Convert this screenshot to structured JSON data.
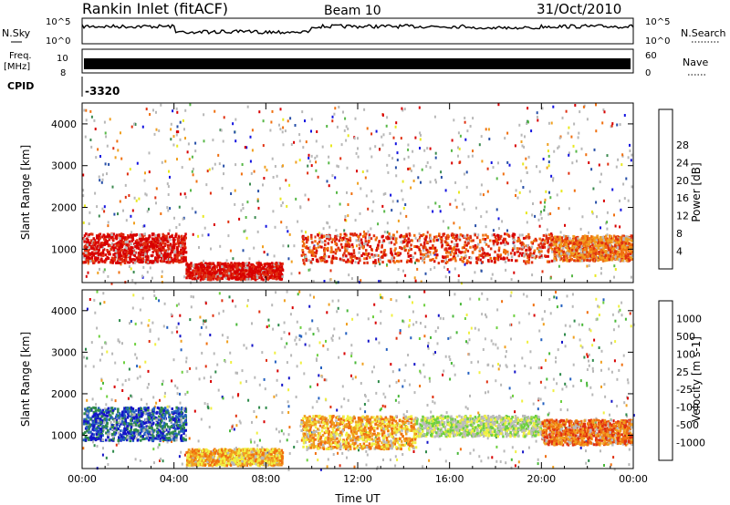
{
  "header": {
    "station": "Rankin Inlet (fitACF)",
    "beam": "Beam 10",
    "date": "31/Oct/2010"
  },
  "colors": {
    "power_scale": [
      "#1414e0",
      "#2850a8",
      "#3c8a50",
      "#58b848",
      "#e8e820",
      "#f0a020",
      "#f07010",
      "#e03010",
      "#d80000"
    ],
    "velocity_scale": [
      "#1414c8",
      "#2460c0",
      "#2e8a4a",
      "#4ab83a",
      "#6ed040",
      "#bcbcbc",
      "#f0f040",
      "#f0a020",
      "#f07010",
      "#e03010",
      "#d80000"
    ],
    "ground_scatter": "#b8b8b8"
  },
  "top_panels": {
    "nsky": {
      "label": "N.Sky",
      "tick_hi": "10^5",
      "tick_lo": "10^0"
    },
    "nsearch": {
      "label": "N.Search",
      "tick_hi": "10^5",
      "tick_lo": "10^0"
    },
    "freq": {
      "label": "Freq.",
      "unit": "[MHz]",
      "tick_hi": "10",
      "tick_lo": "8"
    },
    "nave": {
      "label": "Nave",
      "tick_hi": "60",
      "tick_lo": "0"
    },
    "cpid": {
      "label": "CPID",
      "value": "-3320"
    }
  },
  "chart_data": [
    {
      "type": "heatmap",
      "name": "power",
      "ylabel": "Slant Range [km]",
      "ylim": [
        200,
        4500
      ],
      "yticks": [
        "1000",
        "2000",
        "3000",
        "4000"
      ],
      "x_ticks": [
        "00:00",
        "04:00",
        "08:00",
        "12:00",
        "16:00",
        "20:00",
        "00:00"
      ],
      "colorbar": {
        "label": "Power [dB]",
        "ticks": [
          "4",
          "8",
          "12",
          "16",
          "20",
          "24",
          "28"
        ]
      },
      "regions": [
        {
          "hours": [
            0.0,
            4.5
          ],
          "range_km": [
            700,
            1400
          ],
          "level": 8
        },
        {
          "hours": [
            4.5,
            8.7
          ],
          "range_km": [
            300,
            700
          ],
          "level": 8
        },
        {
          "hours": [
            9.5,
            20.5
          ],
          "range_km": [
            700,
            1400
          ],
          "level": 7
        },
        {
          "hours": [
            20.5,
            23.9
          ],
          "range_km": [
            750,
            1350
          ],
          "level": 6
        }
      ]
    },
    {
      "type": "heatmap",
      "name": "velocity",
      "ylabel": "Slant Range [km]",
      "xlabel": "Time UT",
      "ylim": [
        200,
        4500
      ],
      "yticks": [
        "1000",
        "2000",
        "3000",
        "4000"
      ],
      "x_ticks": [
        "00:00",
        "04:00",
        "08:00",
        "12:00",
        "16:00",
        "20:00",
        "00:00"
      ],
      "colorbar": {
        "label": "Velocity [m s-1]",
        "ticks": [
          "1000",
          "500",
          "100",
          "25",
          "-25",
          "-100",
          "-500",
          "-1000"
        ]
      },
      "regions": [
        {
          "hours": [
            0.0,
            4.5
          ],
          "range_km": [
            900,
            1700
          ],
          "level": 1
        },
        {
          "hours": [
            4.5,
            8.7
          ],
          "range_km": [
            300,
            700
          ],
          "level": 7
        },
        {
          "hours": [
            9.5,
            14.5
          ],
          "range_km": [
            700,
            1500
          ],
          "level": 7
        },
        {
          "hours": [
            14.5,
            20.0
          ],
          "range_km": [
            1000,
            1500
          ],
          "level": 5
        },
        {
          "hours": [
            20.0,
            23.9
          ],
          "range_km": [
            800,
            1400
          ],
          "level": 8
        }
      ]
    }
  ]
}
